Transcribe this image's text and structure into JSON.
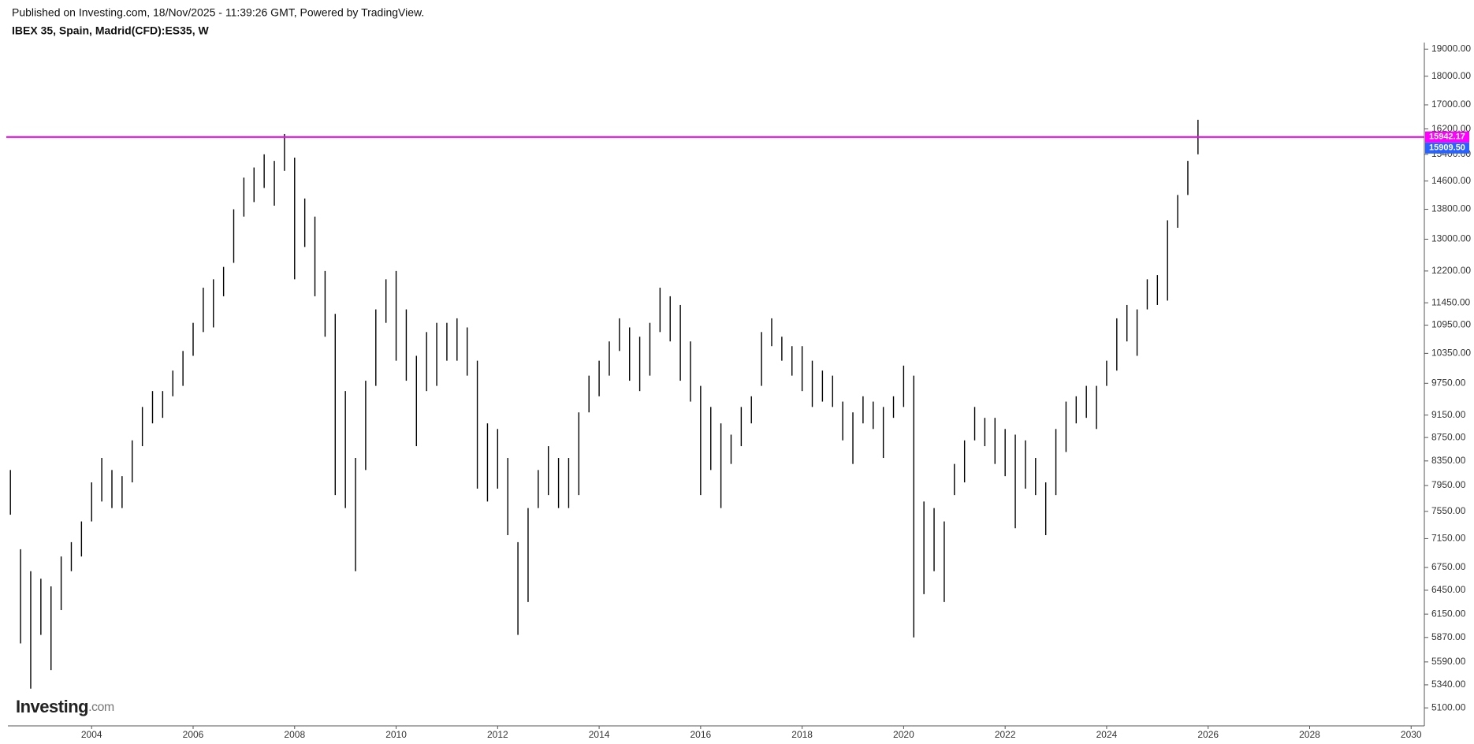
{
  "header": {
    "published": "Published on Investing.com, 18/Nov/2025 - 11:39:26 GMT, Powered by TradingView.",
    "symbol": "IBEX 35, Spain, Madrid(CFD):ES35, W"
  },
  "logo": {
    "name": "Investing",
    "suffix": ".com"
  },
  "chart_data": {
    "type": "ohlc",
    "log_scale": true,
    "color": "#000000",
    "x": [
      2002.4,
      2002.6,
      2002.8,
      2003.0,
      2003.2,
      2003.4,
      2003.6,
      2003.8,
      2004.0,
      2004.2,
      2004.4,
      2004.6,
      2004.8,
      2005.0,
      2005.2,
      2005.4,
      2005.6,
      2005.8,
      2006.0,
      2006.2,
      2006.4,
      2006.6,
      2006.8,
      2007.0,
      2007.2,
      2007.4,
      2007.6,
      2007.8,
      2008.0,
      2008.2,
      2008.4,
      2008.6,
      2008.8,
      2009.0,
      2009.2,
      2009.4,
      2009.6,
      2009.8,
      2010.0,
      2010.2,
      2010.4,
      2010.6,
      2010.8,
      2011.0,
      2011.2,
      2011.4,
      2011.6,
      2011.8,
      2012.0,
      2012.2,
      2012.4,
      2012.6,
      2012.8,
      2013.0,
      2013.2,
      2013.4,
      2013.6,
      2013.8,
      2014.0,
      2014.2,
      2014.4,
      2014.6,
      2014.8,
      2015.0,
      2015.2,
      2015.4,
      2015.6,
      2015.8,
      2016.0,
      2016.2,
      2016.4,
      2016.6,
      2016.8,
      2017.0,
      2017.2,
      2017.4,
      2017.6,
      2017.8,
      2018.0,
      2018.2,
      2018.4,
      2018.6,
      2018.8,
      2019.0,
      2019.2,
      2019.4,
      2019.6,
      2019.8,
      2020.0,
      2020.2,
      2020.4,
      2020.6,
      2020.8,
      2021.0,
      2021.2,
      2021.4,
      2021.6,
      2021.8,
      2022.0,
      2022.2,
      2022.4,
      2022.6,
      2022.8,
      2023.0,
      2023.2,
      2023.4,
      2023.6,
      2023.8,
      2024.0,
      2024.2,
      2024.4,
      2024.6,
      2024.8,
      2025.0,
      2025.2,
      2025.4,
      2025.6,
      2025.8
    ],
    "high": [
      8200,
      7000,
      6700,
      6600,
      6500,
      6900,
      7100,
      7400,
      8000,
      8400,
      8200,
      8100,
      8700,
      9300,
      9600,
      9600,
      10000,
      10400,
      11000,
      11800,
      12000,
      12300,
      13800,
      14700,
      15000,
      15400,
      15200,
      16040,
      15300,
      14100,
      13600,
      12200,
      11200,
      9600,
      8400,
      9800,
      11300,
      12000,
      12200,
      11300,
      10300,
      10800,
      11000,
      11000,
      11100,
      10900,
      10200,
      9000,
      8900,
      8400,
      7100,
      7600,
      8200,
      8600,
      8400,
      8400,
      9200,
      9900,
      10200,
      10600,
      11100,
      10900,
      10700,
      11000,
      11800,
      11600,
      11400,
      10600,
      9700,
      9300,
      9000,
      8800,
      9300,
      9500,
      10800,
      11100,
      10700,
      10500,
      10500,
      10200,
      10000,
      9900,
      9400,
      9200,
      9500,
      9400,
      9300,
      9500,
      10100,
      9900,
      7700,
      7600,
      7400,
      8300,
      8700,
      9300,
      9100,
      9100,
      8900,
      8800,
      8700,
      8400,
      8000,
      8900,
      9400,
      9500,
      9700,
      9700,
      10200,
      11100,
      11400,
      11300,
      12000,
      12100,
      13500,
      14200,
      15200,
      16500
    ],
    "low": [
      7500,
      5800,
      5300,
      5900,
      5500,
      6200,
      6700,
      6900,
      7400,
      7700,
      7600,
      7600,
      8000,
      8600,
      9000,
      9100,
      9500,
      9700,
      10300,
      10800,
      10900,
      11600,
      12400,
      13600,
      14000,
      14400,
      13900,
      14900,
      12000,
      12800,
      11600,
      10700,
      7800,
      7600,
      6700,
      8200,
      9700,
      11000,
      10200,
      9800,
      8600,
      9600,
      9700,
      10200,
      10200,
      9900,
      7900,
      7700,
      7900,
      7200,
      5900,
      6300,
      7600,
      7800,
      7600,
      7600,
      7800,
      9200,
      9500,
      9900,
      10400,
      9800,
      9600,
      9900,
      10800,
      10600,
      9800,
      9400,
      7800,
      8200,
      7600,
      8300,
      8600,
      9000,
      9700,
      10500,
      10200,
      9900,
      9600,
      9300,
      9400,
      9300,
      8700,
      8300,
      9000,
      8900,
      8400,
      9100,
      9300,
      5870,
      6400,
      6700,
      6300,
      7800,
      8000,
      8700,
      8600,
      8300,
      8100,
      7300,
      7900,
      7800,
      7200,
      7800,
      8500,
      9000,
      9100,
      8900,
      9700,
      10000,
      10600,
      10300,
      11300,
      11400,
      11500,
      13300,
      14200,
      15400
    ],
    "xlim": [
      2002.35,
      2030.26
    ],
    "xticks": [
      2004,
      2006,
      2008,
      2010,
      2012,
      2014,
      2016,
      2018,
      2020,
      2022,
      2024,
      2026,
      2028,
      2030
    ],
    "ylim": [
      4920,
      19250
    ],
    "yticks": [
      {
        "value": 5100,
        "label": "5100.00"
      },
      {
        "value": 5340,
        "label": "5340.00"
      },
      {
        "value": 5590,
        "label": "5590.00"
      },
      {
        "value": 5870,
        "label": "5870.00"
      },
      {
        "value": 6150,
        "label": "6150.00"
      },
      {
        "value": 6450,
        "label": "6450.00"
      },
      {
        "value": 6750,
        "label": "6750.00"
      },
      {
        "value": 7150,
        "label": "7150.00"
      },
      {
        "value": 7550,
        "label": "7550.00"
      },
      {
        "value": 7950,
        "label": "7950.00"
      },
      {
        "value": 8350,
        "label": "8350.00"
      },
      {
        "value": 8750,
        "label": "8750.00"
      },
      {
        "value": 9150,
        "label": "9150.00"
      },
      {
        "value": 9750,
        "label": "9750.00"
      },
      {
        "value": 10350,
        "label": "10350.00"
      },
      {
        "value": 10950,
        "label": "10950.00"
      },
      {
        "value": 11450,
        "label": "11450.00"
      },
      {
        "value": 12200,
        "label": "12200.00"
      },
      {
        "value": 13000,
        "label": "13000.00"
      },
      {
        "value": 13800,
        "label": "13800.00"
      },
      {
        "value": 14600,
        "label": "14600.00"
      },
      {
        "value": 15400,
        "label": "15400.00"
      },
      {
        "value": 16200,
        "label": "16200.00"
      },
      {
        "value": 17000,
        "label": "17000.00"
      },
      {
        "value": 18000,
        "label": "18000.00"
      },
      {
        "value": 19000,
        "label": "19000.00"
      }
    ],
    "horizontal_line": {
      "value": 15942.17,
      "color": "#ff00ff"
    },
    "last_price": {
      "value": 15909.5,
      "label": "15909.50",
      "color": "#2962ff"
    }
  }
}
